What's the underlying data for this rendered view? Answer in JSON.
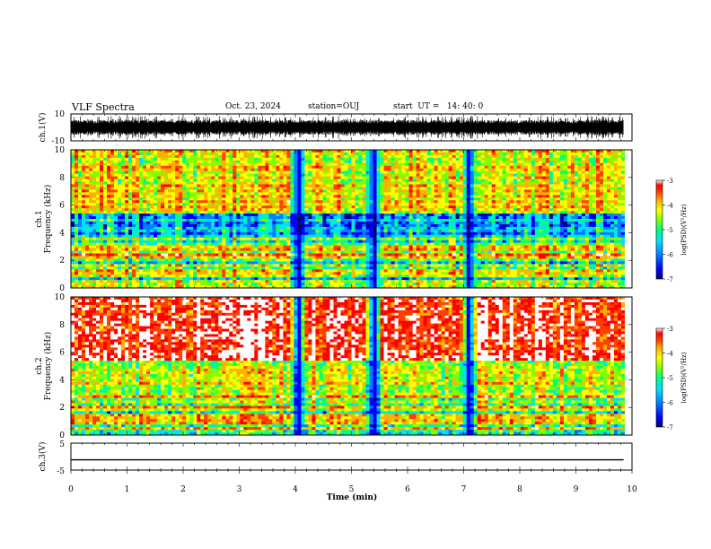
{
  "header": {
    "title": "VLF Spectra",
    "date": "Oct. 23, 2024",
    "station": "station=OUJ",
    "start": "start  UT =   14: 40: 0"
  },
  "colors": {
    "spectrum_scale": [
      "#000080",
      "#0000ff",
      "#0080ff",
      "#00e0ff",
      "#00ff80",
      "#80ff00",
      "#ffff00",
      "#ffb000",
      "#ff4000",
      "#ff0000",
      "#ffffff"
    ]
  },
  "chart_data": [
    {
      "type": "line",
      "panel": "ch1-waveform",
      "ylabel": "ch.1(V)",
      "ylim": [
        -10,
        10
      ],
      "yticks": [
        "10",
        "-10"
      ],
      "xlim": [
        0,
        10
      ],
      "description_note": "dense oscillating waveform filling roughly -5 to +5 V with bursts"
    },
    {
      "type": "heatmap",
      "panel": "ch1-spectrogram",
      "ylabel_line1": "ch.1",
      "ylabel_line2": "Frequency (kHz)",
      "ylim": [
        0,
        10
      ],
      "yticks": [
        "0",
        "2",
        "4",
        "6",
        "8",
        "10"
      ],
      "xlim": [
        0,
        10
      ],
      "colorbar": {
        "label": "log(PSD)(V²/Hz)",
        "ticks": [
          "-3",
          "-4",
          "-5",
          "-6",
          "-7"
        ],
        "range": [
          -7,
          -3
        ]
      },
      "dropouts_min": [
        4.05,
        5.4,
        7.1
      ]
    },
    {
      "type": "heatmap",
      "panel": "ch2-spectrogram",
      "ylabel_line1": "ch.2",
      "ylabel_line2": "Frequency (kHz)",
      "ylim": [
        0,
        10
      ],
      "yticks": [
        "0",
        "2",
        "4",
        "6",
        "8",
        "10"
      ],
      "xlim": [
        0,
        10
      ],
      "colorbar": {
        "label": "log(PSD)(V²/Hz)",
        "ticks": [
          "-3",
          "-4",
          "-5",
          "-6",
          "-7"
        ],
        "range": [
          -7,
          -3
        ]
      },
      "dropouts_min": [
        4.05,
        5.4,
        7.1
      ]
    },
    {
      "type": "line",
      "panel": "ch3-waveform",
      "ylabel": "ch.3(V)",
      "ylim": [
        -5,
        5
      ],
      "yticks": [
        "5",
        "-5"
      ],
      "x": [
        0,
        9.85
      ],
      "y": [
        -1.2,
        -1.2
      ]
    }
  ],
  "xaxis": {
    "label": "Time (min)",
    "ticks": [
      "0",
      "1",
      "2",
      "3",
      "4",
      "5",
      "6",
      "7",
      "8",
      "9",
      "10"
    ],
    "range": [
      0,
      10
    ]
  }
}
